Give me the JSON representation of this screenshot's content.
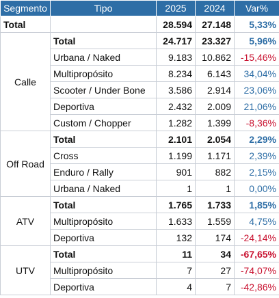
{
  "headers": [
    "Segmento",
    "Tipo",
    "2025",
    "2024",
    "Var%"
  ],
  "grand_total": {
    "label": "Total",
    "y2025": "28.594",
    "y2024": "27.148",
    "var": "5,33%",
    "sign": "pos"
  },
  "segments": [
    {
      "name": "Calle",
      "rows": [
        {
          "tipo": "Total",
          "y2025": "24.717",
          "y2024": "23.327",
          "var": "5,96%",
          "sign": "pos",
          "total": true
        },
        {
          "tipo": "Urbana / Naked",
          "y2025": "9.183",
          "y2024": "10.862",
          "var": "-15,46%",
          "sign": "neg"
        },
        {
          "tipo": "Multipropósito",
          "y2025": "8.234",
          "y2024": "6.143",
          "var": "34,04%",
          "sign": "pos"
        },
        {
          "tipo": "Scooter / Under Bone",
          "y2025": "3.586",
          "y2024": "2.914",
          "var": "23,06%",
          "sign": "pos"
        },
        {
          "tipo": "Deportiva",
          "y2025": "2.432",
          "y2024": "2.009",
          "var": "21,06%",
          "sign": "pos"
        },
        {
          "tipo": "Custom / Chopper",
          "y2025": "1.282",
          "y2024": "1.399",
          "var": "-8,36%",
          "sign": "neg"
        }
      ]
    },
    {
      "name": "Off Road",
      "rows": [
        {
          "tipo": "Total",
          "y2025": "2.101",
          "y2024": "2.054",
          "var": "2,29%",
          "sign": "pos",
          "total": true
        },
        {
          "tipo": "Cross",
          "y2025": "1.199",
          "y2024": "1.171",
          "var": "2,39%",
          "sign": "pos"
        },
        {
          "tipo": "Enduro / Rally",
          "y2025": "901",
          "y2024": "882",
          "var": "2,15%",
          "sign": "pos"
        },
        {
          "tipo": "Urbana / Naked",
          "y2025": "1",
          "y2024": "1",
          "var": "0,00%",
          "sign": "pos"
        }
      ]
    },
    {
      "name": "ATV",
      "rows": [
        {
          "tipo": "Total",
          "y2025": "1.765",
          "y2024": "1.733",
          "var": "1,85%",
          "sign": "pos",
          "total": true
        },
        {
          "tipo": "Multipropósito",
          "y2025": "1.633",
          "y2024": "1.559",
          "var": "4,75%",
          "sign": "pos"
        },
        {
          "tipo": "Deportiva",
          "y2025": "132",
          "y2024": "174",
          "var": "-24,14%",
          "sign": "neg"
        }
      ]
    },
    {
      "name": "UTV",
      "rows": [
        {
          "tipo": "Total",
          "y2025": "11",
          "y2024": "34",
          "var": "-67,65%",
          "sign": "neg",
          "total": true
        },
        {
          "tipo": "Multipropósito",
          "y2025": "7",
          "y2024": "27",
          "var": "-74,07%",
          "sign": "neg"
        },
        {
          "tipo": "Deportiva",
          "y2025": "4",
          "y2024": "7",
          "var": "-42,86%",
          "sign": "neg"
        }
      ]
    }
  ],
  "colors": {
    "header_bg": "#2e6ea6",
    "positive": "#2e6ea6",
    "negative": "#c8102e"
  }
}
